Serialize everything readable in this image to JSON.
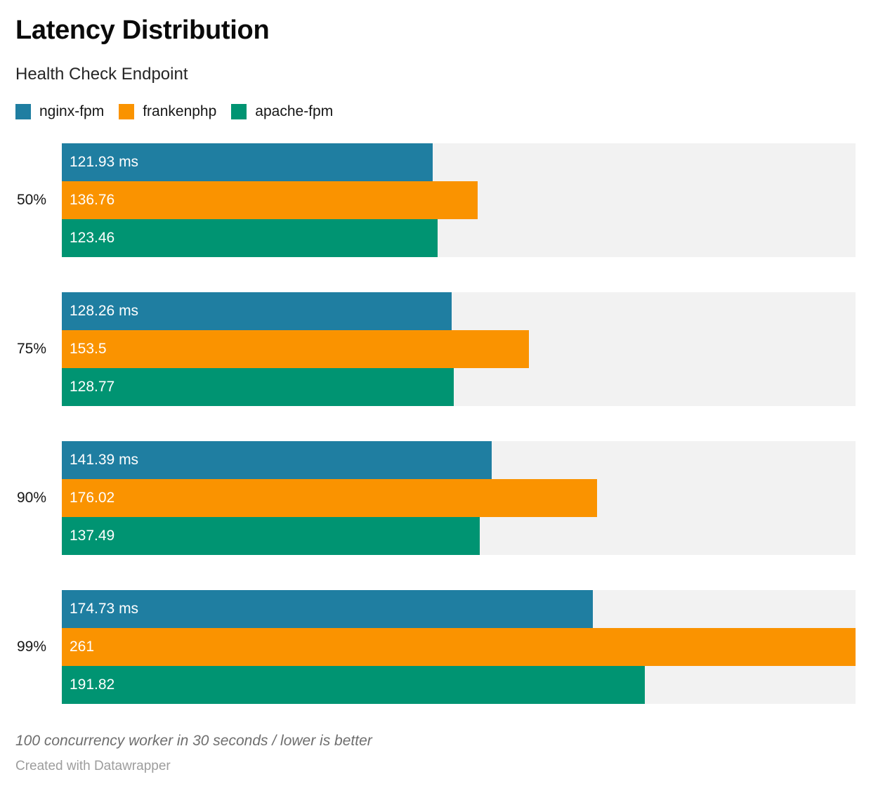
{
  "header": {
    "title": "Latency Distribution",
    "subtitle": "Health Check Endpoint"
  },
  "legend": [
    {
      "label": "nginx-fpm",
      "color": "#1f7ea1",
      "icon": "legend-swatch-square"
    },
    {
      "label": "frankenphp",
      "color": "#fa9300",
      "icon": "legend-swatch-square"
    },
    {
      "label": "apache-fpm",
      "color": "#009472",
      "icon": "legend-swatch-square"
    }
  ],
  "chart_data": {
    "type": "bar",
    "orientation": "horizontal",
    "title": "Latency Distribution",
    "subtitle": "Health Check Endpoint",
    "categories": [
      "50%",
      "75%",
      "90%",
      "99%"
    ],
    "series": [
      {
        "name": "nginx-fpm",
        "color": "#1f7ea1",
        "values": [
          121.93,
          128.26,
          141.39,
          174.73
        ]
      },
      {
        "name": "frankenphp",
        "color": "#fa9300",
        "values": [
          136.76,
          153.5,
          176.02,
          261
        ]
      },
      {
        "name": "apache-fpm",
        "color": "#009472",
        "values": [
          123.46,
          128.77,
          137.49,
          191.82
        ]
      }
    ],
    "bar_labels": [
      [
        "121.93 ms",
        "136.76",
        "123.46"
      ],
      [
        "128.26 ms",
        "153.5",
        "128.77"
      ],
      [
        "141.39 ms",
        "176.02",
        "137.49"
      ],
      [
        "174.73 ms",
        "261",
        "191.82"
      ]
    ],
    "unit": "ms",
    "value_axis_max": 261,
    "track_color": "#f2f2f2",
    "grid": false,
    "legend_position": "top",
    "value_labels_inside_bars": true
  },
  "footer": {
    "note": "100 concurrency worker in 30 seconds / lower is better",
    "credit": "Created with Datawrapper"
  }
}
